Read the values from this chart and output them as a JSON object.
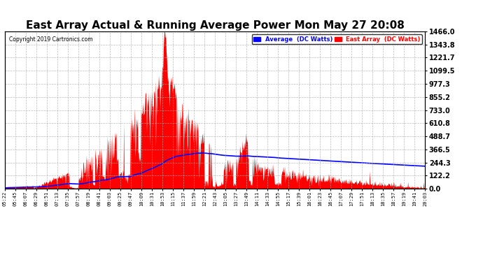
{
  "title": "East Array Actual & Running Average Power Mon May 27 20:08",
  "copyright": "Copyright 2019 Cartronics.com",
  "ylabel_right_ticks": [
    0.0,
    122.2,
    244.3,
    366.5,
    488.7,
    610.8,
    733.0,
    855.2,
    977.3,
    1099.5,
    1221.7,
    1343.8,
    1466.0
  ],
  "ymax": 1466.0,
  "ymin": 0.0,
  "legend_labels": [
    "Average  (DC Watts)",
    "East Array  (DC Watts)"
  ],
  "legend_colors": [
    "#0000ff",
    "#ff0000"
  ],
  "east_array_color": "#ff0000",
  "average_color": "#0000ff",
  "background_color": "#ffffff",
  "grid_color": "#aaaaaa",
  "title_fontsize": 11,
  "x_tick_labels": [
    "05:22",
    "05:45",
    "06:07",
    "06:29",
    "06:51",
    "07:13",
    "07:35",
    "07:57",
    "08:19",
    "08:41",
    "09:03",
    "09:25",
    "09:47",
    "10:09",
    "10:31",
    "10:53",
    "11:15",
    "11:37",
    "11:59",
    "12:21",
    "12:43",
    "13:05",
    "13:27",
    "13:49",
    "14:11",
    "14:33",
    "14:55",
    "15:17",
    "15:39",
    "16:01",
    "16:23",
    "16:45",
    "17:07",
    "17:29",
    "17:51",
    "18:13",
    "18:35",
    "18:57",
    "19:19",
    "19:41",
    "20:03"
  ]
}
